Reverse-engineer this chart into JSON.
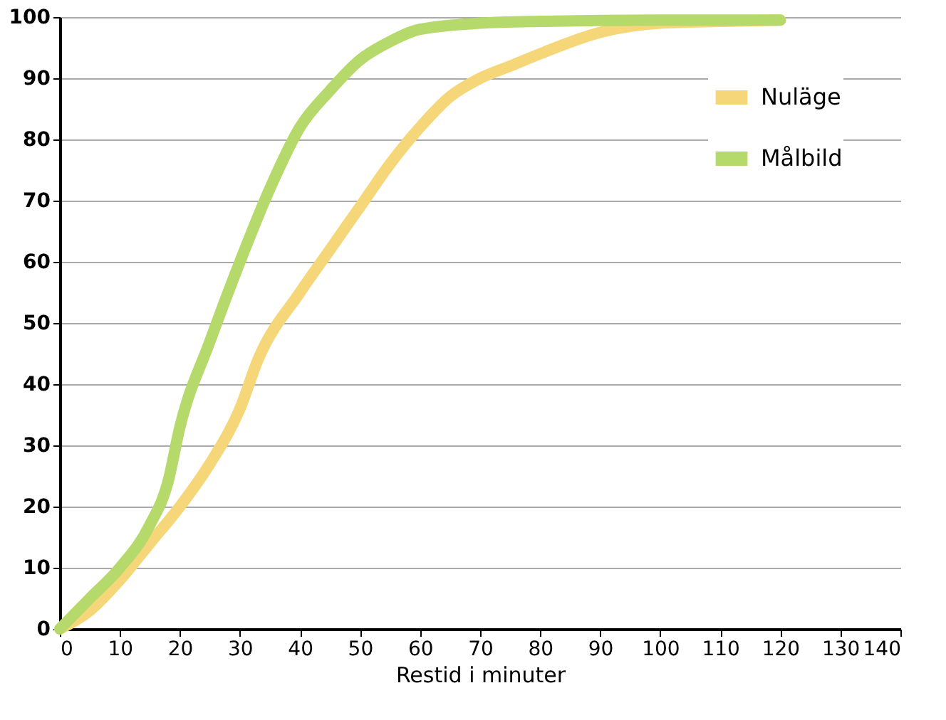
{
  "chart_data": {
    "type": "line",
    "xlabel": "Restid i minuter",
    "xlim": [
      0,
      140
    ],
    "ylim": [
      0,
      100
    ],
    "xticks": [
      0,
      10,
      20,
      30,
      40,
      50,
      60,
      70,
      80,
      90,
      100,
      110,
      120,
      130,
      140
    ],
    "yticks": [
      0,
      10,
      20,
      30,
      40,
      50,
      60,
      70,
      80,
      90,
      100
    ],
    "grid": "y",
    "legend": "top right",
    "marker": "none",
    "line_style": "solid",
    "series": [
      {
        "name": "Nuläge",
        "color": "#f5d77a",
        "x": [
          0,
          5,
          10,
          15,
          20,
          25,
          30,
          33,
          40,
          45,
          50,
          55,
          60,
          65,
          70,
          75,
          80,
          90,
          100,
          110,
          120
        ],
        "values": [
          0,
          3,
          8,
          14,
          20,
          27,
          36,
          44,
          55,
          62,
          69,
          76,
          82,
          87,
          90,
          92,
          94,
          97.5,
          99,
          99.3,
          99.5
        ]
      },
      {
        "name": "Målbild",
        "color": "#b5d96b",
        "x": [
          0,
          5,
          10,
          15,
          18,
          20,
          25,
          30,
          35,
          40,
          45,
          50,
          55,
          60,
          70,
          80,
          100,
          120
        ],
        "values": [
          0,
          5,
          10,
          17,
          24,
          33,
          47,
          60,
          72,
          82,
          88,
          93,
          96,
          98,
          99,
          99.3,
          99.5,
          99.5
        ]
      }
    ]
  }
}
